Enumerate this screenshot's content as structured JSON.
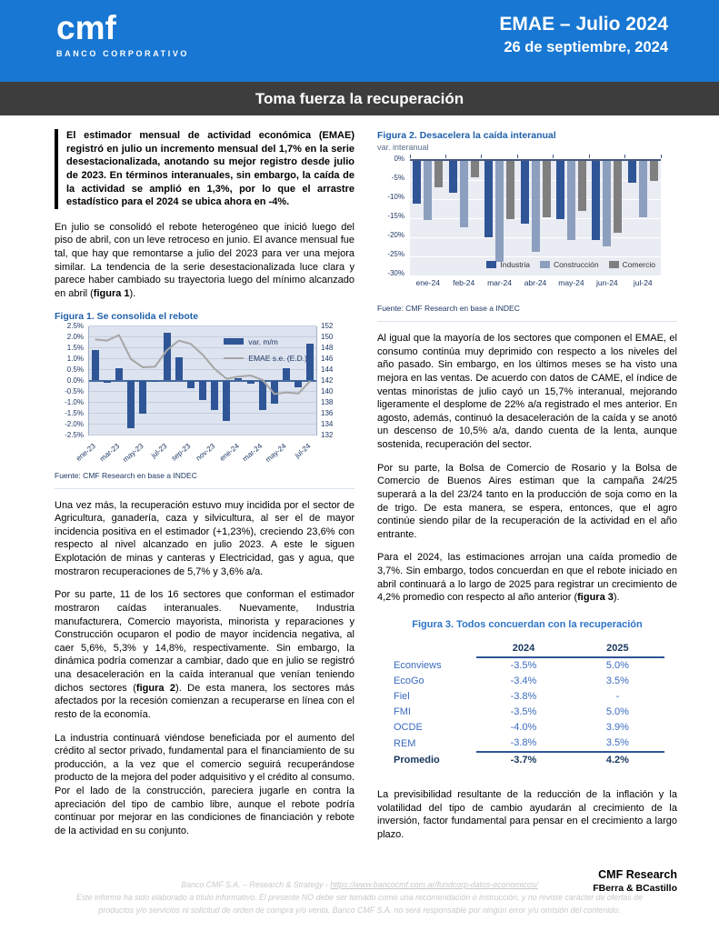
{
  "header": {
    "logo_text": "cmf",
    "logo_subtext": "BANCO CORPORATIVO",
    "title": "EMAE – Julio 2024",
    "date": "26 de septiembre, 2024"
  },
  "banner": {
    "headline": "Toma fuerza la recuperación"
  },
  "left": {
    "intro": "El estimador mensual de actividad económica (EMAE) registró en julio un incremento mensual del 1,7% en la serie desestacionalizada, anotando su mejor registro desde julio de 2023. En términos interanuales, sin embargo, la caída de la actividad se amplió en 1,3%, por lo que el arrastre estadístico para el 2024 se ubica ahora en -4%.",
    "p1_parts": [
      {
        "t": "En julio se consolidó el rebote heterogéneo que inició luego del piso de abril, con un leve retroceso en junio. El avance mensual fue tal, que hay que remontarse a julio del 2023 para ver una mejora similar. La tendencia de la serie desestacionalizada luce clara y parece haber cambiado su trayectoria luego del mínimo alcanzado en abril ("
      },
      {
        "t": "figura 1",
        "b": true
      },
      {
        "t": ")."
      }
    ],
    "p2": "Una vez más, la recuperación estuvo muy incidida por el sector de Agricultura, ganadería, caza y silvicultura, al ser el de mayor incidencia positiva en el estimador (+1,23%), creciendo 23,6% con respecto al nivel alcanzado en julio 2023. A este le siguen Explotación de minas y canteras y Electricidad, gas y agua, que mostraron recuperaciones de 5,7% y 3,6% a/a.",
    "p3_parts": [
      {
        "t": "Por su parte, 11 de los 16 sectores que conforman el estimador mostraron caídas interanuales. Nuevamente, Industria manufacturera, Comercio mayorista, minorista y reparaciones y Construcción ocuparon el podio de mayor incidencia negativa, al caer 5,6%, 5,3% y 14,8%, respectivamente. Sin embargo, la dinámica podría comenzar a cambiar, dado que en julio se registró una desaceleración en la caída interanual que venían teniendo dichos sectores ("
      },
      {
        "t": "figura 2",
        "b": true
      },
      {
        "t": "). De esta manera, los sectores más afectados por la recesión comienzan a recuperarse en línea con el resto de la economía."
      }
    ],
    "p4": "La industria continuará viéndose beneficiada por el aumento del crédito al sector privado, fundamental para el financiamiento de su producción, a la vez que el comercio seguirá recuperándose producto de la mejora del poder adquisitivo y el crédito al consumo. Por el lado de la construcción, pareciera jugarle en contra la apreciación del tipo de cambio libre, aunque el rebote podría continuar por mejorar en las condiciones de financiación y rebote de la actividad en su conjunto."
  },
  "right": {
    "p1": "Al igual que la mayoría de los sectores que componen el EMAE, el consumo continúa muy deprimido con respecto a los niveles del año pasado. Sin embargo, en los últimos meses se ha visto una mejora en las ventas. De acuerdo con datos de CAME, el índice de ventas minoristas de julio cayó un 15,7% interanual, mejorando ligeramente el desplome de 22% a/a registrado el mes anterior. En agosto, además, continuó la desaceleración de la caída y se anotó un descenso de 10,5% a/a, dando cuenta de la lenta, aunque sostenida, recuperación del sector.",
    "p2": "Por su parte, la Bolsa de Comercio de Rosario y la Bolsa de Comercio de Buenos Aires estiman que la campaña 24/25 superará a la del 23/24 tanto en la producción de soja como en la de trigo. De esta manera, se espera, entonces, que el agro continúe siendo pilar de la recuperación de la actividad en el año entrante.",
    "p3_parts": [
      {
        "t": "Para el 2024, las estimaciones arrojan una caída promedio de 3,7%. Sin embargo, todos concuerdan en que el rebote iniciado en abril continuará a lo largo de 2025 para registrar un crecimiento de 4,2% promedio con respecto al año anterior ("
      },
      {
        "t": "figura 3",
        "b": true
      },
      {
        "t": ")."
      }
    ],
    "p4": "La previsibilidad resultante de la reducción de la inflación y la volatilidad del tipo de cambio ayudarán al crecimiento de la inversión, factor fundamental para pensar en el crecimiento a largo plazo.",
    "signature_line1": "CMF Research",
    "signature_line2": "FBerra & BCastillo"
  },
  "figure1": {
    "title": "Figura 1. Se consolida el rebote",
    "source": "Fuente: CMF Research en base a INDEC",
    "chart_data": {
      "type": "combo-bar-line",
      "categories": [
        "ene-23",
        "feb-23",
        "mar-23",
        "abr-23",
        "may-23",
        "jun-23",
        "jul-23",
        "ago-23",
        "sep-23",
        "oct-23",
        "nov-23",
        "dic-23",
        "ene-24",
        "feb-24",
        "mar-24",
        "abr-24",
        "may-24",
        "jun-24",
        "jul-24"
      ],
      "bar_series": {
        "name": "var. m/m",
        "color": "#2f5597",
        "values": [
          1.4,
          -0.1,
          0.55,
          -2.2,
          -1.5,
          -0.05,
          2.2,
          1.05,
          -0.35,
          -0.9,
          -1.35,
          -1.85,
          0.1,
          -0.15,
          -1.35,
          -1.05,
          0.55,
          -0.3,
          1.7
        ]
      },
      "line_series": {
        "name": "EMAE s.e. (E.D.)",
        "color": "#a6a6a6",
        "values": [
          149.6,
          149.4,
          150.4,
          146.0,
          144.5,
          144.6,
          147.6,
          149.4,
          148.8,
          146.8,
          144.2,
          142.4,
          142.8,
          143.0,
          142.2,
          139.6,
          139.9,
          139.7,
          142.0
        ]
      },
      "left_axis": {
        "min": -2.5,
        "max": 2.5,
        "step": 0.5,
        "format": "percent"
      },
      "right_axis": {
        "min": 132,
        "max": 152,
        "step": 2
      },
      "x_tick_labels": [
        "ene-23",
        "mar-23",
        "may-23",
        "jul-23",
        "sep-23",
        "nov-23",
        "ene-24",
        "mar-24",
        "may-24",
        "jul-24"
      ],
      "grid": true,
      "legend_position": "top-right-inside"
    }
  },
  "figure2": {
    "title": "Figura 2. Desacelera la caída interanual",
    "subtitle": "var. interanual",
    "source": "Fuente: CMF Research en base a INDEC",
    "chart_data": {
      "type": "bar",
      "categories": [
        "ene-24",
        "feb-24",
        "mar-24",
        "abr-24",
        "may-24",
        "jun-24",
        "jul-24"
      ],
      "series": [
        {
          "name": "Industria",
          "color": "#2f5597",
          "values": [
            -11.2,
            -8.3,
            -20.1,
            -16.4,
            -15.2,
            -20.7,
            -5.6
          ]
        },
        {
          "name": "Construcción",
          "color": "#8d9fbe",
          "values": [
            -15.4,
            -17.3,
            -26.5,
            -23.8,
            -20.7,
            -22.3,
            -14.8
          ]
        },
        {
          "name": "Comercio",
          "color": "#7f7f7f",
          "values": [
            -6.8,
            -4.3,
            -15.3,
            -14.7,
            -13.1,
            -18.9,
            -5.3
          ]
        }
      ],
      "y_axis": {
        "min": -30,
        "max": 0,
        "step": 5,
        "format": "percent"
      },
      "grid": true,
      "legend_position": "bottom-right-inside"
    }
  },
  "figure3": {
    "title": "Figura 3. Todos concuerdan con la recuperación",
    "columns": [
      "2024",
      "2025"
    ],
    "rows": [
      {
        "name": "Econviews",
        "y2024": "-3.5%",
        "y2025": "5.0%"
      },
      {
        "name": "EcoGo",
        "y2024": "-3.4%",
        "y2025": "3.5%"
      },
      {
        "name": "Fiel",
        "y2024": "-3.8%",
        "y2025": "-"
      },
      {
        "name": "FMI",
        "y2024": "-3.5%",
        "y2025": "5.0%"
      },
      {
        "name": "OCDE",
        "y2024": "-4.0%",
        "y2025": "3.9%"
      },
      {
        "name": "REM",
        "y2024": "-3.8%",
        "y2025": "3.5%"
      }
    ],
    "footer": {
      "name": "Promedio",
      "y2024": "-3.7%",
      "y2025": "4.2%"
    }
  },
  "footer": {
    "line1_prefix": "Banco CMF S.A. – Research & Strategy - ",
    "link": "https://www.bancocmf.com.ar/fundcorp-datos-economicos/",
    "disclaimer": "Este informe ha sido elaborado a título informativo. El presente NO debe ser tomado como una recomendación o instrucción, y no reviste carácter de ofertas de productos y/o servicios ni solicitud de orden de compra y/o venta. Banco CMF S.A. no será responsable por ningún error y/u omisión del contenido."
  },
  "colors": {
    "header_blue": "#1877d2",
    "banner_gray": "#3d3d3d",
    "figure_title_blue": "#1f5fa9",
    "figure3_title_blue": "#2e74c9",
    "bar_blue": "#2f5597",
    "construccion_blue": "#8d9fbe",
    "comercio_gray": "#7f7f7f",
    "line_gray": "#a6a6a6",
    "axis_navy": "#1f3864",
    "table_blue": "#3a6bbf",
    "table_navy": "#17375e"
  }
}
